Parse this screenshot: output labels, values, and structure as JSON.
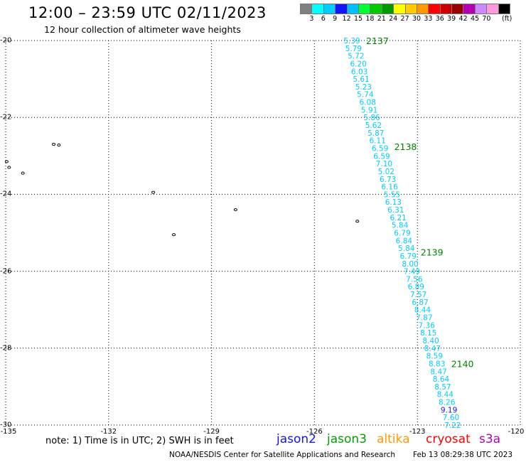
{
  "header": {
    "title": "12:00 – 23:59 UTC 02/11/2023",
    "subtitle": "12 hour collection of altimeter wave heights"
  },
  "legend": {
    "unit": "(ft)",
    "swatches": [
      {
        "color": "#808080",
        "label": ""
      },
      {
        "color": "#00ffff",
        "label": "3"
      },
      {
        "color": "#00ccff",
        "label": "6"
      },
      {
        "color": "#1414ff",
        "label": "9"
      },
      {
        "color": "#00bfff",
        "label": "12"
      },
      {
        "color": "#00ff33",
        "label": "15"
      },
      {
        "color": "#00cc00",
        "label": "18"
      },
      {
        "color": "#009900",
        "label": "21"
      },
      {
        "color": "#ffff00",
        "label": "24"
      },
      {
        "color": "#ffcc00",
        "label": "27"
      },
      {
        "color": "#ff9900",
        "label": "30"
      },
      {
        "color": "#ff0000",
        "label": "33"
      },
      {
        "color": "#cc0000",
        "label": "36"
      },
      {
        "color": "#990000",
        "label": "39"
      },
      {
        "color": "#b300b3",
        "label": "42"
      },
      {
        "color": "#cc88ff",
        "label": "45"
      },
      {
        "color": "#ff99dd",
        "label": "70"
      },
      {
        "color": "#000000",
        "label": ""
      }
    ]
  },
  "axes": {
    "y_ticks": [
      "-20",
      "-22",
      "-24",
      "-26",
      "-28",
      "-30"
    ],
    "x_ticks": [
      "-135",
      "-132",
      "-129",
      "-126",
      "-123",
      "-120"
    ]
  },
  "track": {
    "passes": [
      {
        "label": "2137",
        "lat": -20.0
      },
      {
        "label": "2138",
        "lat": -22.75
      },
      {
        "label": "2139",
        "lat": -25.5
      },
      {
        "label": "2140",
        "lat": -28.4
      }
    ],
    "points": [
      {
        "v": "5.39",
        "lat": -20.0,
        "lon": -124.91,
        "c": "cyan"
      },
      {
        "v": "5.79",
        "lat": -20.2,
        "lon": -124.86,
        "c": "cyan"
      },
      {
        "v": "5.72",
        "lat": -20.4,
        "lon": -124.79,
        "c": "cyan"
      },
      {
        "v": "6.20",
        "lat": -20.6,
        "lon": -124.72,
        "c": "cyan"
      },
      {
        "v": "6.03",
        "lat": -20.8,
        "lon": -124.69,
        "c": "cyan"
      },
      {
        "v": "5.61",
        "lat": -21.0,
        "lon": -124.64,
        "c": "cyan"
      },
      {
        "v": "5.23",
        "lat": -21.2,
        "lon": -124.57,
        "c": "cyan"
      },
      {
        "v": "5.74",
        "lat": -21.4,
        "lon": -124.52,
        "c": "cyan"
      },
      {
        "v": "6.08",
        "lat": -21.6,
        "lon": -124.45,
        "c": "cyan"
      },
      {
        "v": "5.91",
        "lat": -21.8,
        "lon": -124.4,
        "c": "cyan"
      },
      {
        "v": "5.86",
        "lat": -22.0,
        "lon": -124.33,
        "c": "cyan"
      },
      {
        "v": "5.62",
        "lat": -22.2,
        "lon": -124.28,
        "c": "cyan"
      },
      {
        "v": "5.87",
        "lat": -22.4,
        "lon": -124.21,
        "c": "cyan"
      },
      {
        "v": "6.11",
        "lat": -22.6,
        "lon": -124.16,
        "c": "cyan"
      },
      {
        "v": "6.59",
        "lat": -22.8,
        "lon": -124.09,
        "c": "cyan"
      },
      {
        "v": "6.59",
        "lat": -23.0,
        "lon": -124.04,
        "c": "cyan"
      },
      {
        "v": "7.10",
        "lat": -23.2,
        "lon": -123.97,
        "c": "cyan"
      },
      {
        "v": "5.02",
        "lat": -23.4,
        "lon": -123.91,
        "c": "cyan"
      },
      {
        "v": "6.73",
        "lat": -23.6,
        "lon": -123.86,
        "c": "cyan"
      },
      {
        "v": "6.16",
        "lat": -23.8,
        "lon": -123.81,
        "c": "cyan"
      },
      {
        "v": "5.55",
        "lat": -24.0,
        "lon": -123.74,
        "c": "cyan"
      },
      {
        "v": "6.13",
        "lat": -24.2,
        "lon": -123.7,
        "c": "cyan"
      },
      {
        "v": "6.31",
        "lat": -24.4,
        "lon": -123.63,
        "c": "cyan"
      },
      {
        "v": "6.21",
        "lat": -24.6,
        "lon": -123.56,
        "c": "cyan"
      },
      {
        "v": "5.84",
        "lat": -24.8,
        "lon": -123.51,
        "c": "cyan"
      },
      {
        "v": "6.79",
        "lat": -25.0,
        "lon": -123.44,
        "c": "cyan"
      },
      {
        "v": "6.84",
        "lat": -25.2,
        "lon": -123.39,
        "c": "cyan"
      },
      {
        "v": "5.84",
        "lat": -25.4,
        "lon": -123.32,
        "c": "cyan"
      },
      {
        "v": "6.79",
        "lat": -25.6,
        "lon": -123.27,
        "c": "cyan"
      },
      {
        "v": "8.00",
        "lat": -25.8,
        "lon": -123.21,
        "c": "cyan"
      },
      {
        "v": "7.49",
        "lat": -26.0,
        "lon": -123.16,
        "c": "cyan"
      },
      {
        "v": "7.56",
        "lat": -26.2,
        "lon": -123.09,
        "c": "cyan"
      },
      {
        "v": "6.89",
        "lat": -26.4,
        "lon": -123.04,
        "c": "cyan"
      },
      {
        "v": "7.57",
        "lat": -26.6,
        "lon": -122.97,
        "c": "cyan"
      },
      {
        "v": "6.87",
        "lat": -26.8,
        "lon": -122.92,
        "c": "cyan"
      },
      {
        "v": "8.44",
        "lat": -27.0,
        "lon": -122.85,
        "c": "cyan"
      },
      {
        "v": "7.87",
        "lat": -27.2,
        "lon": -122.8,
        "c": "cyan"
      },
      {
        "v": "7.36",
        "lat": -27.4,
        "lon": -122.73,
        "c": "cyan"
      },
      {
        "v": "8.15",
        "lat": -27.6,
        "lon": -122.68,
        "c": "cyan"
      },
      {
        "v": "8.40",
        "lat": -27.8,
        "lon": -122.61,
        "c": "cyan"
      },
      {
        "v": "8.47",
        "lat": -28.0,
        "lon": -122.56,
        "c": "cyan"
      },
      {
        "v": "8.59",
        "lat": -28.2,
        "lon": -122.5,
        "c": "cyan"
      },
      {
        "v": "8.83",
        "lat": -28.4,
        "lon": -122.43,
        "c": "cyan"
      },
      {
        "v": "8.47",
        "lat": -28.6,
        "lon": -122.38,
        "c": "cyan"
      },
      {
        "v": "8.64",
        "lat": -28.8,
        "lon": -122.31,
        "c": "cyan"
      },
      {
        "v": "8.57",
        "lat": -29.0,
        "lon": -122.26,
        "c": "cyan"
      },
      {
        "v": "8.44",
        "lat": -29.2,
        "lon": -122.19,
        "c": "cyan"
      },
      {
        "v": "8.26",
        "lat": -29.4,
        "lon": -122.14,
        "c": "cyan"
      },
      {
        "v": "9.19",
        "lat": -29.6,
        "lon": -122.08,
        "c": "blue"
      },
      {
        "v": "7.60",
        "lat": -29.8,
        "lon": -122.02,
        "c": "cyan"
      },
      {
        "v": "7.22",
        "lat": -30.0,
        "lon": -121.97,
        "c": "cyan"
      }
    ]
  },
  "islands": [
    {
      "lat": -22.7,
      "lon": -133.6
    },
    {
      "lat": -22.72,
      "lon": -133.45
    },
    {
      "lat": -23.15,
      "lon": -134.97
    },
    {
      "lat": -23.3,
      "lon": -134.9
    },
    {
      "lat": -23.45,
      "lon": -134.5
    },
    {
      "lat": -23.95,
      "lon": -130.7
    },
    {
      "lat": -24.4,
      "lon": -128.3
    },
    {
      "lat": -24.7,
      "lon": -124.75
    },
    {
      "lat": -25.05,
      "lon": -130.1
    }
  ],
  "note": "note:  1) Time is in UTC; 2) SWH is in feet",
  "satellites": [
    {
      "name": "jason2",
      "color": "#1414ff"
    },
    {
      "name": "jason3",
      "color": "#00a000"
    },
    {
      "name": "altika",
      "color": "#ff9900"
    },
    {
      "name": "cryosat",
      "color": "#ff0000"
    },
    {
      "name": "s3a",
      "color": "#b300b3"
    }
  ],
  "footer": {
    "credit": "NOAA/NESDIS Center for Satellite Applications and Research",
    "generated": "Feb 13 08:29:38 UTC 2023"
  },
  "colors": {
    "cyan": "#00ccff",
    "blue": "#1414ff",
    "pass": "#008000",
    "grid": "#000000"
  }
}
